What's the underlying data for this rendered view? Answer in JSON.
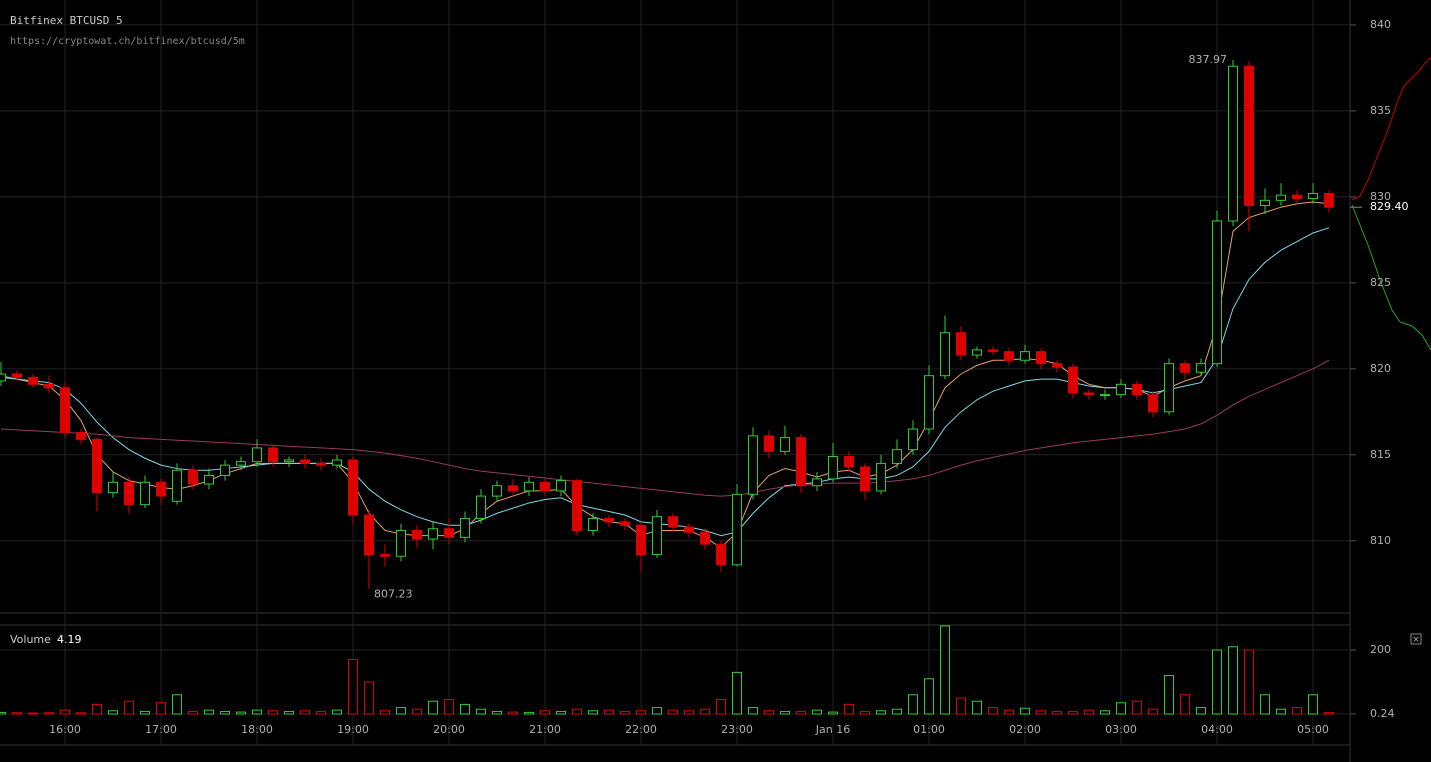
{
  "chart_data": {
    "type": "candlestick",
    "title": "Bitfinex BTCUSD 5",
    "subtitle": "https://cryptowat.ch/bitfinex/btcusd/5m",
    "categories": [
      null,
      null,
      null,
      null,
      "16:00",
      null,
      null,
      null,
      null,
      null,
      "17:00",
      null,
      null,
      null,
      null,
      null,
      "18:00",
      null,
      null,
      null,
      null,
      null,
      "19:00",
      null,
      null,
      null,
      null,
      null,
      "20:00",
      null,
      null,
      null,
      null,
      null,
      "21:00",
      null,
      null,
      null,
      null,
      null,
      "22:00",
      null,
      null,
      null,
      null,
      null,
      "23:00",
      null,
      null,
      null,
      null,
      null,
      "Jan 16",
      null,
      null,
      null,
      null,
      null,
      "01:00",
      null,
      null,
      null,
      null,
      null,
      "02:00",
      null,
      null,
      null,
      null,
      null,
      "03:00",
      null,
      null,
      null,
      null,
      null,
      "04:00",
      null,
      null,
      null,
      null,
      null,
      "05:00",
      null
    ],
    "open": [
      819.3,
      819.7,
      819.5,
      819.1,
      818.9,
      816.3,
      815.9,
      812.8,
      813.4,
      812.1,
      813.4,
      812.3,
      814.1,
      813.3,
      813.8,
      814.4,
      814.6,
      815.4,
      814.6,
      814.7,
      814.5,
      814.4,
      814.7,
      811.5,
      809.2,
      809.1,
      810.6,
      810.1,
      810.7,
      810.2,
      811.3,
      812.6,
      813.2,
      812.9,
      813.4,
      812.9,
      813.5,
      810.6,
      811.3,
      811.1,
      810.9,
      809.2,
      811.4,
      810.8,
      810.5,
      809.8,
      808.6,
      812.7,
      816.1,
      815.2,
      816,
      813.2,
      813.6,
      814.9,
      814.3,
      812.9,
      814.5,
      815.3,
      816.5,
      819.6,
      822.1,
      820.8,
      821.1,
      821,
      820.5,
      821,
      820.3,
      820.1,
      818.6,
      818.5,
      818.5,
      819.1,
      818.5,
      817.5,
      820.3,
      819.8,
      820.3,
      828.6,
      837.6,
      829.5,
      829.8,
      830.1,
      829.9,
      830.2
    ],
    "high": [
      820.4,
      819.9,
      819.7,
      819.6,
      819.2,
      816.5,
      816,
      814,
      813.7,
      813.8,
      813.6,
      814.5,
      814.4,
      814.2,
      814.7,
      814.9,
      815.9,
      815.6,
      814.9,
      815,
      814.8,
      815,
      814.9,
      811.8,
      809.8,
      811,
      810.9,
      811.1,
      811.3,
      811.7,
      813,
      813.5,
      813.6,
      813.7,
      813.6,
      813.8,
      813.6,
      811.6,
      811.5,
      811.3,
      811.1,
      811.8,
      811.6,
      811,
      810.7,
      810,
      813.3,
      816.6,
      816.4,
      816.7,
      816.2,
      814,
      815.7,
      815.2,
      814.5,
      815,
      815.9,
      817,
      820.2,
      823.1,
      822.5,
      821.3,
      821.3,
      821.2,
      821.4,
      821.2,
      820.5,
      820.3,
      818.8,
      818.8,
      819.4,
      819.3,
      818.7,
      820.6,
      820.5,
      820.6,
      829.2,
      837.97,
      837.9,
      830.5,
      830.8,
      830.4,
      830.8,
      830.4
    ],
    "low": [
      819,
      819.3,
      818.9,
      818.6,
      816,
      815.6,
      811.7,
      812.5,
      811.6,
      811.9,
      812.1,
      812.1,
      813,
      813,
      813.5,
      814.1,
      814.3,
      814.3,
      814.3,
      814.2,
      814.1,
      814.2,
      811,
      807.23,
      808.5,
      808.8,
      809.6,
      809.5,
      809.8,
      809.9,
      811,
      812.3,
      812.6,
      812.6,
      812.6,
      812.6,
      810.3,
      810.3,
      810.8,
      810.6,
      808.2,
      809,
      810.5,
      810.2,
      809.5,
      808.2,
      808.5,
      812.4,
      814.8,
      815,
      812.8,
      812.9,
      813.4,
      814,
      812.4,
      812.7,
      814.2,
      815,
      816.2,
      819.4,
      820.5,
      820.6,
      820.8,
      820.2,
      820.3,
      820,
      819.8,
      818.3,
      818.2,
      818.2,
      818.3,
      818.2,
      817.2,
      817.3,
      819.4,
      819.6,
      820.1,
      828.3,
      828,
      829,
      829.5,
      829.6,
      829.6,
      829.1
    ],
    "close": [
      819.7,
      819.5,
      819.1,
      818.9,
      816.3,
      815.9,
      812.8,
      813.4,
      812.1,
      813.4,
      812.6,
      814.1,
      813.3,
      813.8,
      814.4,
      814.6,
      815.4,
      814.6,
      814.7,
      814.5,
      814.4,
      814.7,
      811.5,
      809.2,
      809.1,
      810.6,
      810.1,
      810.7,
      810.2,
      811.3,
      812.6,
      813.2,
      812.9,
      813.4,
      812.9,
      813.5,
      810.6,
      811.3,
      811.1,
      810.9,
      809.2,
      811.4,
      810.8,
      810.5,
      809.8,
      808.6,
      812.7,
      816.1,
      815.2,
      816,
      813.2,
      813.6,
      814.9,
      814.3,
      812.9,
      814.5,
      815.3,
      816.5,
      819.6,
      822.1,
      820.8,
      821.1,
      821,
      820.5,
      821,
      820.3,
      820.1,
      818.6,
      818.5,
      818.5,
      819.1,
      818.5,
      817.5,
      820.3,
      819.8,
      820.3,
      828.6,
      837.6,
      829.5,
      829.8,
      830.1,
      829.9,
      830.2,
      829.4
    ],
    "volume": [
      5,
      4,
      3,
      4,
      12,
      4,
      30,
      10,
      40,
      8,
      35,
      60,
      8,
      12,
      8,
      6,
      12,
      10,
      8,
      10,
      8,
      12,
      170,
      100,
      10,
      20,
      15,
      40,
      45,
      30,
      15,
      8,
      6,
      5,
      10,
      8,
      15,
      10,
      12,
      8,
      10,
      20,
      12,
      10,
      15,
      45,
      130,
      20,
      10,
      8,
      8,
      12,
      6,
      30,
      8,
      10,
      15,
      60,
      110,
      275,
      50,
      40,
      20,
      12,
      18,
      10,
      8,
      8,
      12,
      10,
      35,
      40,
      15,
      120,
      60,
      20,
      200,
      210,
      200,
      60,
      15,
      20,
      60,
      4.19
    ],
    "volume_label": "Volume",
    "last_label": "829.40",
    "up_color": "#33cc33",
    "down_color": "#dd0000",
    "lines": [
      {
        "color": "#e8a060",
        "values": [
          819.6,
          819.4,
          819.2,
          819,
          818.2,
          817,
          815,
          814,
          813.5,
          813.3,
          813.1,
          813,
          813.2,
          813.5,
          813.9,
          814.2,
          814.5,
          814.5,
          814.5,
          814.5,
          814.5,
          814.5,
          813.4,
          811.6,
          810.6,
          810.4,
          810.3,
          810.3,
          810.3,
          810.7,
          811.6,
          812.3,
          812.6,
          812.9,
          812.9,
          813,
          812,
          811.4,
          811.1,
          811,
          810.3,
          810.6,
          810.6,
          810.6,
          810.2,
          809.6,
          810.5,
          812.8,
          813.8,
          814.2,
          814,
          813.7,
          814,
          814.1,
          813.7,
          813.9,
          814.4,
          815.3,
          817,
          818.9,
          819.7,
          820.2,
          820.5,
          820.5,
          820.6,
          820.5,
          820.3,
          819.6,
          819.1,
          818.9,
          818.9,
          818.8,
          818.4,
          818.9,
          819.3,
          819.6,
          822.6,
          828,
          828.8,
          829.1,
          829.4,
          829.6,
          829.7,
          829.6
        ]
      },
      {
        "color": "#80d8e8",
        "values": [
          819.5,
          819.4,
          819.3,
          819.2,
          818.8,
          818,
          816.9,
          816,
          815.3,
          814.8,
          814.4,
          814.2,
          814.1,
          814.1,
          814.2,
          814.3,
          814.4,
          814.5,
          814.5,
          814.5,
          814.5,
          814.5,
          814,
          813,
          812.3,
          811.8,
          811.4,
          811.1,
          810.9,
          810.9,
          811.2,
          811.6,
          811.9,
          812.2,
          812.4,
          812.5,
          812.1,
          811.9,
          811.7,
          811.5,
          811.1,
          811,
          810.9,
          810.8,
          810.6,
          810.3,
          810.5,
          811.6,
          812.5,
          813.2,
          813.3,
          813.4,
          813.6,
          813.7,
          813.6,
          813.6,
          813.8,
          814.3,
          815.2,
          816.6,
          817.5,
          818.2,
          818.7,
          819,
          819.3,
          819.4,
          819.4,
          819.2,
          819,
          818.9,
          818.9,
          818.8,
          818.6,
          818.8,
          819,
          819.2,
          820.6,
          823.5,
          825.2,
          826.2,
          826.9,
          827.4,
          827.9,
          828.2
        ]
      },
      {
        "color": "#9a3a5a",
        "values": [
          816.5,
          816.45,
          816.4,
          816.35,
          816.3,
          816.25,
          816.2,
          816.1,
          816,
          815.95,
          815.9,
          815.85,
          815.8,
          815.75,
          815.7,
          815.65,
          815.6,
          815.55,
          815.5,
          815.45,
          815.4,
          815.35,
          815.3,
          815.2,
          815.1,
          814.95,
          814.8,
          814.6,
          814.4,
          814.2,
          814.05,
          813.95,
          813.85,
          813.75,
          813.65,
          813.55,
          813.45,
          813.35,
          813.25,
          813.15,
          813.05,
          812.95,
          812.85,
          812.75,
          812.65,
          812.6,
          812.65,
          812.8,
          813,
          813.15,
          813.25,
          813.3,
          813.35,
          813.35,
          813.35,
          813.4,
          813.5,
          813.6,
          813.8,
          814.1,
          814.4,
          814.65,
          814.85,
          815.05,
          815.25,
          815.4,
          815.55,
          815.7,
          815.8,
          815.9,
          816,
          816.1,
          816.2,
          816.35,
          816.5,
          816.8,
          817.3,
          817.9,
          818.4,
          818.8,
          819.2,
          819.6,
          820,
          820.5
        ]
      }
    ],
    "ylim": [
      805.8,
      841.45
    ],
    "yticks": [
      810,
      815,
      820,
      825,
      830,
      835,
      840
    ],
    "volume_ylim": [
      0,
      278
    ],
    "volume_yticks": [
      0.24,
      200
    ],
    "grid": true
  }
}
